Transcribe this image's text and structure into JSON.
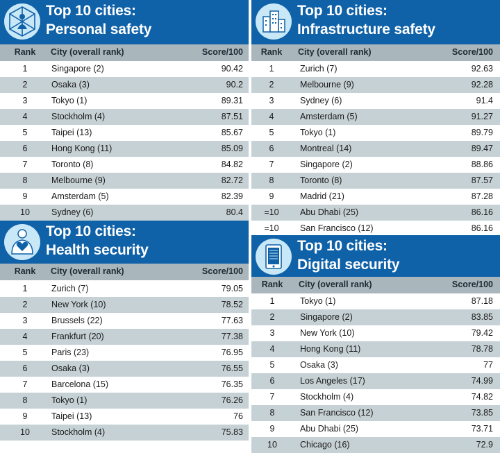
{
  "header_labels": {
    "rank": "Rank",
    "city": "City (overall rank)",
    "score": "Score/100"
  },
  "colors": {
    "header_blue": "#0f61a8",
    "stripe": "#c6d1d5",
    "column_header": "#a9b7bd",
    "icon": "#c9e8f7"
  },
  "panels": [
    {
      "id": "personal",
      "title_line1": "Top 10 cities:",
      "title_line2": "Personal safety",
      "icon": "network-figure-icon",
      "rows": [
        {
          "rank": "1",
          "city": "Singapore (2)",
          "score": "90.42"
        },
        {
          "rank": "2",
          "city": "Osaka (3)",
          "score": "90.2"
        },
        {
          "rank": "3",
          "city": "Tokyo (1)",
          "score": "89.31"
        },
        {
          "rank": "4",
          "city": "Stockholm (4)",
          "score": "87.51"
        },
        {
          "rank": "5",
          "city": "Taipei (13)",
          "score": "85.67"
        },
        {
          "rank": "6",
          "city": "Hong Kong (11)",
          "score": "85.09"
        },
        {
          "rank": "7",
          "city": "Toronto (8)",
          "score": "84.82"
        },
        {
          "rank": "8",
          "city": "Melbourne (9)",
          "score": "82.72"
        },
        {
          "rank": "9",
          "city": "Amsterdam (5)",
          "score": "82.39"
        },
        {
          "rank": "10",
          "city": "Sydney (6)",
          "score": "80.4"
        }
      ]
    },
    {
      "id": "infrastructure",
      "title_line1": "Top 10 cities:",
      "title_line2": "Infrastructure safety",
      "icon": "buildings-icon",
      "rows": [
        {
          "rank": "1",
          "city": "Zurich (7)",
          "score": "92.63"
        },
        {
          "rank": "2",
          "city": "Melbourne (9)",
          "score": "92.28"
        },
        {
          "rank": "3",
          "city": "Sydney (6)",
          "score": "91.4"
        },
        {
          "rank": "4",
          "city": "Amsterdam (5)",
          "score": "91.27"
        },
        {
          "rank": "5",
          "city": "Tokyo (1)",
          "score": "89.79"
        },
        {
          "rank": "6",
          "city": "Montreal (14)",
          "score": "89.47"
        },
        {
          "rank": "7",
          "city": "Singapore (2)",
          "score": "88.86"
        },
        {
          "rank": "8",
          "city": "Toronto (8)",
          "score": "87.57"
        },
        {
          "rank": "9",
          "city": "Madrid (21)",
          "score": "87.28"
        },
        {
          "rank": "=10",
          "city": "Abu Dhabi (25)",
          "score": "86.16"
        },
        {
          "rank": "=10",
          "city": "San Francisco (12)",
          "score": "86.16"
        }
      ]
    },
    {
      "id": "health",
      "title_line1": "Top 10 cities:",
      "title_line2": "Health security",
      "icon": "heart-person-icon",
      "rows": [
        {
          "rank": "1",
          "city": "Zurich (7)",
          "score": "79.05"
        },
        {
          "rank": "2",
          "city": "New York (10)",
          "score": "78.52"
        },
        {
          "rank": "3",
          "city": "Brussels (22)",
          "score": "77.63"
        },
        {
          "rank": "4",
          "city": "Frankfurt (20)",
          "score": "77.38"
        },
        {
          "rank": "5",
          "city": "Paris (23)",
          "score": "76.95"
        },
        {
          "rank": "6",
          "city": "Osaka (3)",
          "score": "76.55"
        },
        {
          "rank": "7",
          "city": "Barcelona (15)",
          "score": "76.35"
        },
        {
          "rank": "8",
          "city": "Tokyo (1)",
          "score": "76.26"
        },
        {
          "rank": "9",
          "city": "Taipei (13)",
          "score": "76"
        },
        {
          "rank": "10",
          "city": "Stockholm (4)",
          "score": "75.83"
        }
      ]
    },
    {
      "id": "digital",
      "title_line1": "Top 10 cities:",
      "title_line2": "Digital security",
      "icon": "tablet-icon",
      "rows": [
        {
          "rank": "1",
          "city": "Tokyo (1)",
          "score": "87.18"
        },
        {
          "rank": "2",
          "city": "Singapore (2)",
          "score": "83.85"
        },
        {
          "rank": "3",
          "city": "New York (10)",
          "score": "79.42"
        },
        {
          "rank": "4",
          "city": "Hong Kong (11)",
          "score": "78.78"
        },
        {
          "rank": "5",
          "city": "Osaka (3)",
          "score": "77"
        },
        {
          "rank": "6",
          "city": "Los Angeles (17)",
          "score": "74.99"
        },
        {
          "rank": "7",
          "city": "Stockholm (4)",
          "score": "74.82"
        },
        {
          "rank": "8",
          "city": "San Francisco (12)",
          "score": "73.85"
        },
        {
          "rank": "9",
          "city": "Abu Dhabi (25)",
          "score": "73.71"
        },
        {
          "rank": "10",
          "city": "Chicago (16)",
          "score": "72.9"
        }
      ]
    }
  ]
}
